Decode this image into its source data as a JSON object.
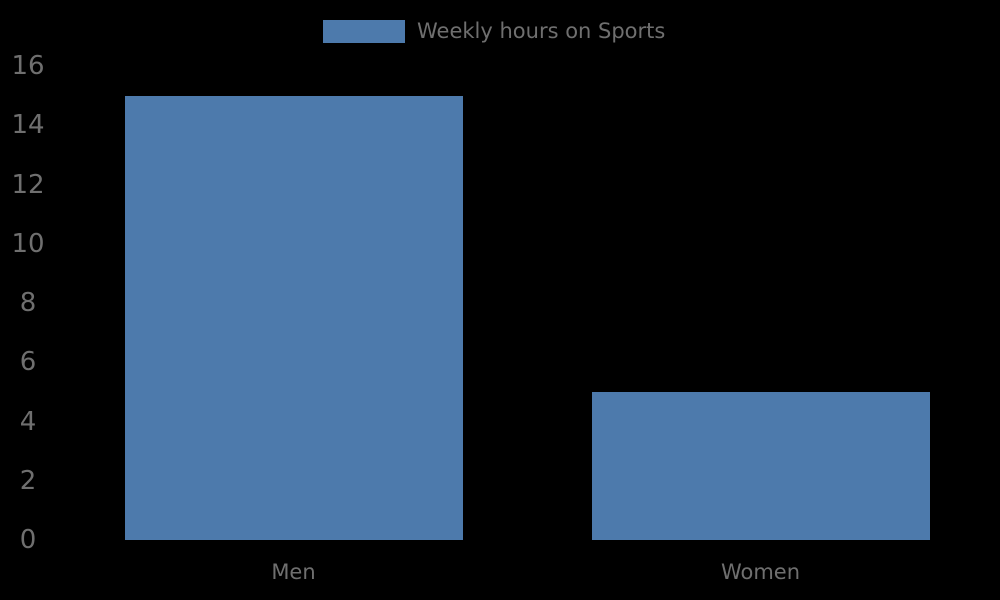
{
  "chart_data": {
    "type": "bar",
    "title": "",
    "legend": "Weekly hours on Sports",
    "legend_position": "top-center",
    "categories": [
      "Men",
      "Women"
    ],
    "values": [
      15,
      5
    ],
    "xlabel": "",
    "ylabel": "",
    "ylim": [
      0,
      16
    ],
    "ytick_step": 2,
    "yticks": [
      0,
      2,
      4,
      6,
      8,
      10,
      12,
      14,
      16
    ],
    "grid": false,
    "bar_color": "#4d7aac",
    "text_color": "#6f6f6f",
    "background": "#000000"
  }
}
